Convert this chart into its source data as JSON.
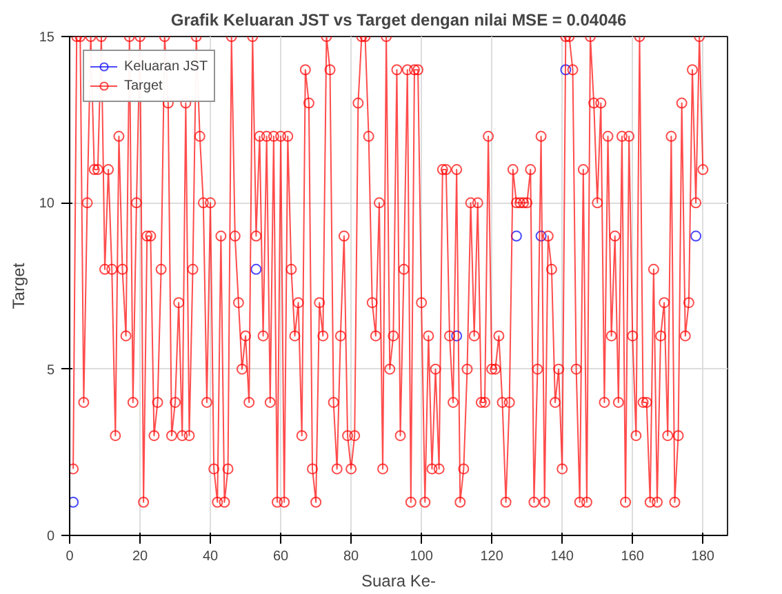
{
  "chart_data": {
    "type": "line",
    "title": "Grafik Keluaran JST vs Target dengan nilai MSE = 0.04046",
    "xlabel": "Suara Ke-",
    "ylabel": "Target",
    "x": [
      1,
      2,
      3,
      4,
      5,
      6,
      7,
      8,
      9,
      10,
      11,
      12,
      13,
      14,
      15,
      16,
      17,
      18,
      19,
      20,
      21,
      22,
      23,
      24,
      25,
      26,
      27,
      28,
      29,
      30,
      31,
      32,
      33,
      34,
      35,
      36,
      37,
      38,
      39,
      40,
      41,
      42,
      43,
      44,
      45,
      46,
      47,
      48,
      49,
      50,
      51,
      52,
      53,
      54,
      55,
      56,
      57,
      58,
      59,
      60,
      61,
      62,
      63,
      64,
      65,
      66,
      67,
      68,
      69,
      70,
      71,
      72,
      73,
      74,
      75,
      76,
      77,
      78,
      79,
      80,
      81,
      82,
      83,
      84,
      85,
      86,
      87,
      88,
      89,
      90,
      91,
      92,
      93,
      94,
      95,
      96,
      97,
      98,
      99,
      100,
      101,
      102,
      103,
      104,
      105,
      106,
      107,
      108,
      109,
      110,
      111,
      112,
      113,
      114,
      115,
      116,
      117,
      118,
      119,
      120,
      121,
      122,
      123,
      124,
      125,
      126,
      127,
      128,
      129,
      130,
      131,
      132,
      133,
      134,
      135,
      136,
      137,
      138,
      139,
      140,
      141,
      142,
      143,
      144,
      145,
      146,
      147,
      148,
      149,
      150,
      151,
      152,
      153,
      154,
      155,
      156,
      157,
      158,
      159,
      160,
      161,
      162,
      163,
      164,
      165,
      166,
      167,
      168,
      169,
      170,
      171,
      172,
      173,
      174,
      175,
      176,
      177,
      178,
      179,
      180
    ],
    "series": [
      {
        "name": "Keluaran JST",
        "color": "#0000ff",
        "values": [
          1,
          null,
          null,
          null,
          null,
          null,
          null,
          null,
          null,
          null,
          null,
          null,
          null,
          null,
          null,
          null,
          null,
          null,
          null,
          null,
          null,
          null,
          null,
          null,
          null,
          null,
          null,
          null,
          null,
          null,
          null,
          null,
          null,
          null,
          null,
          null,
          null,
          null,
          null,
          null,
          null,
          null,
          null,
          null,
          null,
          null,
          null,
          null,
          null,
          null,
          null,
          null,
          8,
          null,
          null,
          null,
          null,
          null,
          null,
          null,
          null,
          null,
          null,
          null,
          null,
          null,
          null,
          null,
          null,
          null,
          null,
          null,
          null,
          null,
          null,
          null,
          null,
          null,
          null,
          null,
          null,
          null,
          null,
          null,
          null,
          null,
          null,
          null,
          null,
          null,
          null,
          null,
          null,
          null,
          null,
          null,
          null,
          null,
          null,
          null,
          null,
          null,
          null,
          null,
          null,
          null,
          null,
          null,
          null,
          6,
          null,
          null,
          null,
          null,
          null,
          null,
          null,
          null,
          null,
          null,
          null,
          null,
          null,
          null,
          null,
          null,
          9,
          null,
          null,
          null,
          null,
          null,
          null,
          9,
          null,
          null,
          null,
          null,
          null,
          null,
          14,
          null,
          null,
          null,
          null,
          null,
          null,
          null,
          null,
          null,
          null,
          null,
          null,
          null,
          null,
          null,
          null,
          null,
          null,
          null,
          null,
          null,
          null,
          null,
          null,
          null,
          null,
          null,
          null,
          null,
          null,
          null,
          null,
          null,
          null,
          null,
          null,
          9,
          null,
          null
        ]
      },
      {
        "name": "Target",
        "color": "#ff0000",
        "values": [
          2,
          15,
          15,
          4,
          10,
          15,
          11,
          11,
          15,
          8,
          11,
          8,
          3,
          12,
          8,
          6,
          15,
          4,
          10,
          15,
          1,
          9,
          9,
          3,
          4,
          8,
          15,
          13,
          3,
          4,
          7,
          3,
          13,
          3,
          8,
          15,
          12,
          10,
          4,
          10,
          2,
          1,
          9,
          1,
          2,
          15,
          9,
          7,
          5,
          6,
          4,
          15,
          9,
          12,
          6,
          12,
          4,
          12,
          1,
          12,
          1,
          12,
          8,
          6,
          7,
          3,
          14,
          13,
          2,
          1,
          7,
          6,
          15,
          14,
          4,
          2,
          6,
          9,
          3,
          2,
          3,
          13,
          15,
          15,
          12,
          7,
          6,
          10,
          2,
          15,
          5,
          6,
          14,
          3,
          8,
          14,
          1,
          14,
          14,
          7,
          1,
          6,
          2,
          5,
          2,
          11,
          11,
          6,
          4,
          11,
          1,
          2,
          5,
          10,
          6,
          10,
          4,
          4,
          12,
          5,
          5,
          6,
          4,
          1,
          4,
          11,
          10,
          10,
          10,
          10,
          11,
          1,
          5,
          12,
          1,
          9,
          8,
          4,
          5,
          2,
          15,
          15,
          14,
          5,
          1,
          11,
          1,
          15,
          13,
          10,
          13,
          4,
          12,
          6,
          9,
          4,
          12,
          1,
          12,
          6,
          3,
          15,
          4,
          4,
          1,
          8,
          1,
          6,
          7,
          3,
          12,
          1,
          3,
          13,
          6,
          7,
          14,
          10,
          15,
          11
        ]
      }
    ],
    "xlim": [
      0,
      187
    ],
    "ylim": [
      0,
      15
    ],
    "xticks": [
      0,
      20,
      40,
      60,
      80,
      100,
      120,
      140,
      160,
      180
    ],
    "yticks": [
      0,
      5,
      10,
      15
    ],
    "grid": true,
    "legend": "top left",
    "marker": "circle",
    "line_style": "solid"
  }
}
